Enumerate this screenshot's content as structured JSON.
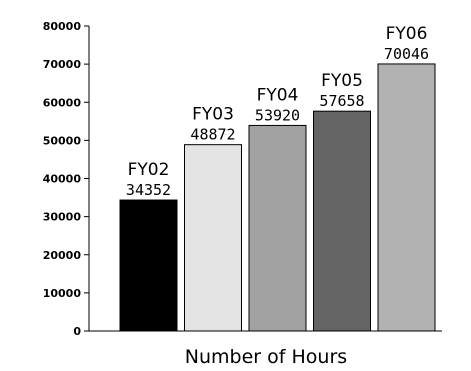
{
  "chart_data": {
    "type": "bar",
    "categories": [
      "FY02",
      "FY03",
      "FY04",
      "FY05",
      "FY06"
    ],
    "values": [
      34352,
      48872,
      53920,
      57658,
      70046
    ],
    "bar_colors": [
      "#000000",
      "#e4e4e4",
      "#a2a2a2",
      "#646464",
      "#b2b2b2"
    ],
    "xlabel": "Number of Hours",
    "ylabel": "",
    "ylim": [
      0,
      80000
    ],
    "yticks": [
      0,
      10000,
      20000,
      30000,
      40000,
      50000,
      60000,
      70000,
      80000
    ],
    "grid": false,
    "legend": "none",
    "data_labels_above_bars": true
  }
}
